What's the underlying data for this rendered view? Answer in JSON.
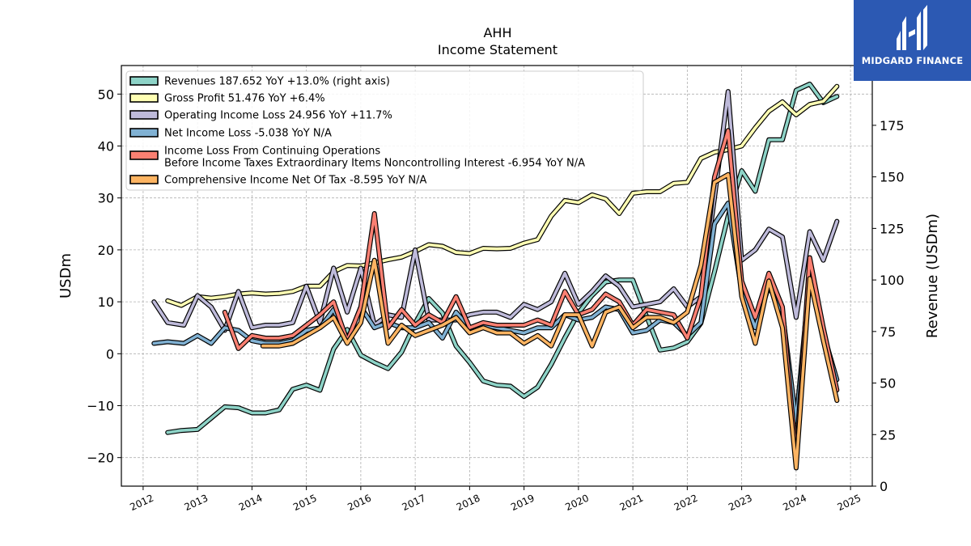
{
  "brand": {
    "name": "MIDGARD FINANCE",
    "color": "#2c59b3"
  },
  "chart_data": {
    "type": "line",
    "title": "AHH",
    "subtitle": "Income Statement",
    "ylabel_left": "USDm",
    "ylabel_right": "Revenue (USDm)",
    "xlim": [
      2011.6,
      2025.4
    ],
    "ylim_left": [
      -25.5,
      55.5
    ],
    "ylim_right": [
      0,
      204
    ],
    "x_ticks": [
      "2012",
      "2013",
      "2014",
      "2015",
      "2016",
      "2017",
      "2018",
      "2019",
      "2020",
      "2021",
      "2022",
      "2023",
      "2024",
      "2025"
    ],
    "y_ticks_left": [
      -20,
      -10,
      0,
      10,
      20,
      30,
      40,
      50
    ],
    "y_ticks_right": [
      0,
      25,
      50,
      75,
      100,
      125,
      150,
      175
    ],
    "grid": true,
    "legend_position": "top-left",
    "series": [
      {
        "name": "Revenues  187.652 YoY +13.0% (right axis)",
        "axis": "right",
        "color": "#8dd3c7",
        "x": [
          2012.45,
          2012.7,
          2013.0,
          2013.25,
          2013.5,
          2013.75,
          2014.0,
          2014.25,
          2014.5,
          2014.75,
          2015.0,
          2015.25,
          2015.5,
          2015.75,
          2016.0,
          2016.25,
          2016.5,
          2016.75,
          2017.0,
          2017.25,
          2017.5,
          2017.75,
          2018.0,
          2018.25,
          2018.5,
          2018.75,
          2019.0,
          2019.25,
          2019.5,
          2019.75,
          2020.0,
          2020.25,
          2020.5,
          2020.75,
          2021.0,
          2021.25,
          2021.5,
          2021.75,
          2022.0,
          2022.25,
          2022.5,
          2022.75,
          2023.0,
          2023.25,
          2023.5,
          2023.75,
          2024.0,
          2024.25,
          2024.5,
          2024.75
        ],
        "values": [
          26,
          27,
          27.5,
          33,
          38.5,
          38,
          35.5,
          35.5,
          37,
          47,
          49,
          46.5,
          66.5,
          76,
          63.5,
          60,
          57,
          65,
          79,
          91,
          84,
          68,
          60,
          51,
          49,
          48.5,
          43.5,
          48,
          59,
          72,
          84,
          92.5,
          99,
          100,
          100,
          82.5,
          66,
          67,
          70,
          79,
          104,
          131,
          153,
          143,
          168,
          168,
          192,
          195,
          186,
          189
        ]
      },
      {
        "name": "Gross Profit  51.476 YoY +6.4%",
        "axis": "left",
        "color": "#ffffb3",
        "x": [
          2012.45,
          2012.7,
          2013.0,
          2013.25,
          2013.5,
          2013.75,
          2014.0,
          2014.25,
          2014.5,
          2014.75,
          2015.0,
          2015.25,
          2015.5,
          2015.75,
          2016.0,
          2016.25,
          2016.5,
          2016.75,
          2017.0,
          2017.25,
          2017.5,
          2017.75,
          2018.0,
          2018.25,
          2018.5,
          2018.75,
          2019.0,
          2019.25,
          2019.5,
          2019.75,
          2020.0,
          2020.25,
          2020.5,
          2020.75,
          2021.0,
          2021.25,
          2021.5,
          2021.75,
          2022.0,
          2022.25,
          2022.5,
          2022.75,
          2023.0,
          2023.25,
          2023.5,
          2023.75,
          2024.0,
          2024.25,
          2024.5,
          2024.75
        ],
        "values": [
          10.2,
          9.3,
          11,
          10.7,
          11,
          11.5,
          11.7,
          11.5,
          11.6,
          12,
          13,
          13,
          15.8,
          17,
          16.9,
          17.5,
          18.1,
          18.6,
          19.7,
          21,
          20.7,
          19.5,
          19.3,
          20.3,
          20.2,
          20.3,
          21.3,
          22,
          26.5,
          29.5,
          29.1,
          30.6,
          29.8,
          27,
          30.9,
          31.2,
          31.2,
          32.8,
          33,
          37.6,
          38.8,
          39.3,
          40,
          43.5,
          46.7,
          48.5,
          46,
          48,
          48.6,
          51.5
        ]
      },
      {
        "name": "Operating Income Loss  24.956 YoY +11.7%",
        "axis": "left",
        "color": "#bebada",
        "x": [
          2012.2,
          2012.45,
          2012.75,
          2013.0,
          2013.25,
          2013.5,
          2013.75,
          2014.0,
          2014.25,
          2014.5,
          2014.75,
          2015.0,
          2015.25,
          2015.5,
          2015.75,
          2016.0,
          2016.25,
          2016.5,
          2016.75,
          2017.0,
          2017.25,
          2017.5,
          2017.75,
          2018.0,
          2018.25,
          2018.5,
          2018.75,
          2019.0,
          2019.25,
          2019.5,
          2019.75,
          2020.0,
          2020.25,
          2020.5,
          2020.75,
          2021.0,
          2021.25,
          2021.5,
          2021.75,
          2022.0,
          2022.25,
          2022.5,
          2022.75,
          2023.0,
          2023.25,
          2023.5,
          2023.75,
          2024.0,
          2024.25,
          2024.5,
          2024.75
        ],
        "values": [
          10,
          6,
          5.5,
          11.2,
          9,
          4.5,
          12,
          5,
          5.5,
          5.5,
          6,
          13,
          6,
          16.5,
          8,
          16.5,
          5.5,
          7.5,
          7,
          20,
          6.5,
          6.5,
          6.5,
          7.5,
          8,
          8,
          7,
          9.5,
          8.5,
          10,
          15.5,
          9.5,
          12,
          15,
          13,
          9,
          9.5,
          10,
          12.5,
          9,
          11,
          30,
          50.5,
          18,
          20,
          24,
          22.5,
          7,
          23.5,
          18,
          25.5
        ]
      },
      {
        "name": "Net Income Loss  -5.038 YoY N/A",
        "axis": "left",
        "color": "#80b1d3",
        "x": [
          2012.2,
          2012.45,
          2012.75,
          2013.0,
          2013.25,
          2013.5,
          2013.75,
          2014.0,
          2014.25,
          2014.5,
          2014.75,
          2015.0,
          2015.25,
          2015.5,
          2015.75,
          2016.0,
          2016.25,
          2016.5,
          2016.75,
          2017.0,
          2017.25,
          2017.5,
          2017.75,
          2018.0,
          2018.25,
          2018.5,
          2018.75,
          2019.0,
          2019.25,
          2019.5,
          2019.75,
          2020.0,
          2020.25,
          2020.5,
          2020.75,
          2021.0,
          2021.25,
          2021.5,
          2021.75,
          2022.0,
          2022.25,
          2022.5,
          2022.75,
          2023.0,
          2023.25,
          2023.5,
          2023.75,
          2024.0,
          2024.25,
          2024.5,
          2024.75
        ],
        "values": [
          2,
          2.3,
          2,
          3.5,
          2,
          5,
          4.5,
          2.5,
          2,
          2,
          2.5,
          4.5,
          5,
          8.5,
          2.5,
          9,
          5,
          6,
          5,
          5,
          6,
          3,
          8,
          5,
          5.5,
          5,
          4.5,
          4,
          5,
          5,
          7.5,
          6.5,
          7,
          9,
          8.5,
          4,
          4.5,
          6.5,
          6,
          3.5,
          6,
          25,
          29,
          12,
          5,
          13,
          8,
          -13,
          15,
          4,
          -5
        ]
      },
      {
        "name": "Income Loss From Continuing Operations\nBefore Income Taxes Extraordinary Items Noncontrolling Interest  -6.954 YoY N/A",
        "axis": "left",
        "color": "#fb8072",
        "x": [
          2013.5,
          2013.75,
          2014.0,
          2014.25,
          2014.5,
          2014.75,
          2015.0,
          2015.25,
          2015.5,
          2015.75,
          2016.0,
          2016.25,
          2016.5,
          2016.75,
          2017.0,
          2017.25,
          2017.5,
          2017.75,
          2018.0,
          2018.25,
          2018.5,
          2018.75,
          2019.0,
          2019.25,
          2019.5,
          2019.75,
          2020.0,
          2020.25,
          2020.5,
          2020.75,
          2021.0,
          2021.25,
          2021.5,
          2021.75,
          2022.0,
          2022.25,
          2022.5,
          2022.75,
          2023.0,
          2023.25,
          2023.5,
          2023.75,
          2024.0,
          2024.25,
          2024.5,
          2024.75
        ],
        "values": [
          8,
          1,
          3.5,
          3,
          3,
          3.5,
          5.5,
          7.5,
          10,
          2.5,
          9,
          27,
          5,
          8.5,
          5.5,
          7.5,
          6,
          11,
          5,
          6,
          5.5,
          5.5,
          5.5,
          6.5,
          5.5,
          12,
          7.5,
          8.5,
          11.5,
          10,
          5.5,
          8.5,
          8,
          7.5,
          3,
          11,
          34,
          43,
          14,
          7,
          15.5,
          9,
          -19.5,
          18.5,
          5,
          -7
        ]
      },
      {
        "name": "Comprehensive Income Net Of Tax  -8.595 YoY N/A",
        "axis": "left",
        "color": "#fdb462",
        "x": [
          2014.2,
          2014.5,
          2014.75,
          2015.0,
          2015.25,
          2015.5,
          2015.75,
          2016.0,
          2016.25,
          2016.5,
          2016.75,
          2017.0,
          2017.25,
          2017.5,
          2017.75,
          2018.0,
          2018.25,
          2018.5,
          2018.75,
          2019.0,
          2019.25,
          2019.5,
          2019.75,
          2020.0,
          2020.25,
          2020.5,
          2020.75,
          2021.0,
          2021.25,
          2021.5,
          2021.75,
          2022.0,
          2022.25,
          2022.5,
          2022.75,
          2023.0,
          2023.25,
          2023.5,
          2023.75,
          2024.0,
          2024.25,
          2024.5,
          2024.75
        ],
        "values": [
          1.5,
          1.5,
          2,
          3.5,
          5,
          7,
          2,
          6,
          18,
          2,
          5.5,
          3.5,
          4.5,
          5.5,
          7,
          4,
          5,
          4,
          4,
          2,
          3.5,
          1.5,
          7.5,
          7.5,
          1.5,
          8,
          9,
          5,
          7,
          7,
          6,
          8,
          17,
          33,
          34.5,
          11,
          2,
          14,
          5,
          -22,
          14.5,
          2.5,
          -9
        ]
      }
    ]
  }
}
